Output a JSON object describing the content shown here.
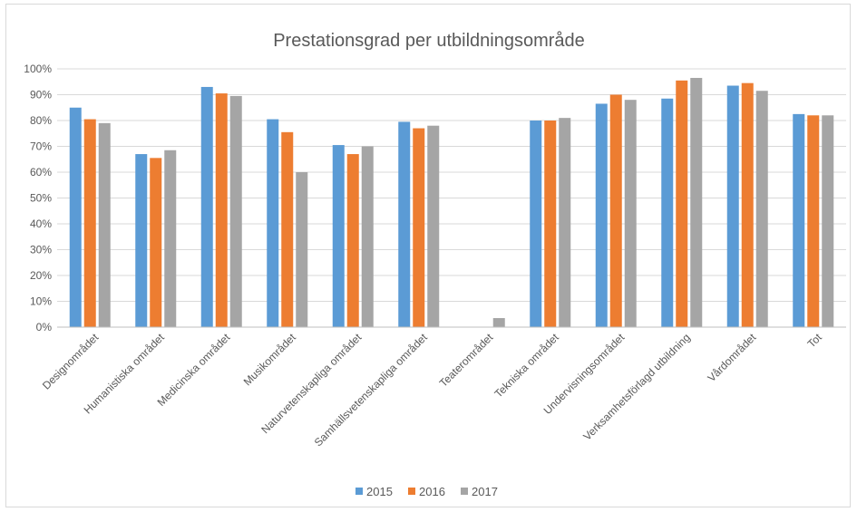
{
  "chart_data": {
    "type": "bar",
    "title": "Prestationsgrad per utbildningsområde",
    "xlabel": "",
    "ylabel": "",
    "ylim": [
      0,
      1
    ],
    "yticks": [
      "0%",
      "10%",
      "20%",
      "30%",
      "40%",
      "50%",
      "60%",
      "70%",
      "80%",
      "90%",
      "100%"
    ],
    "grid": true,
    "legend_position": "bottom",
    "categories": [
      "Designområdet",
      "Humanistiska området",
      "Medicinska området",
      "Musikområdet",
      "Naturvetenskapliga området",
      "Samhällsvetenskapliga området",
      "Teaterområdet",
      "Tekniska området",
      "Undervisningsområdet",
      "Verksamhetsförlagd utbildning",
      "Vårdområdet",
      "Tot"
    ],
    "series": [
      {
        "name": "2015",
        "color": "#5b9bd5",
        "values": [
          0.85,
          0.67,
          0.93,
          0.805,
          0.705,
          0.795,
          null,
          0.8,
          0.865,
          0.885,
          0.935,
          0.825
        ]
      },
      {
        "name": "2016",
        "color": "#ed7d31",
        "values": [
          0.805,
          0.655,
          0.905,
          0.755,
          0.67,
          0.77,
          null,
          0.8,
          0.9,
          0.955,
          0.945,
          0.82
        ]
      },
      {
        "name": "2017",
        "color": "#a5a5a5",
        "values": [
          0.79,
          0.685,
          0.895,
          0.6,
          0.7,
          0.78,
          0.035,
          0.81,
          0.88,
          0.965,
          0.915,
          0.82
        ]
      }
    ]
  }
}
